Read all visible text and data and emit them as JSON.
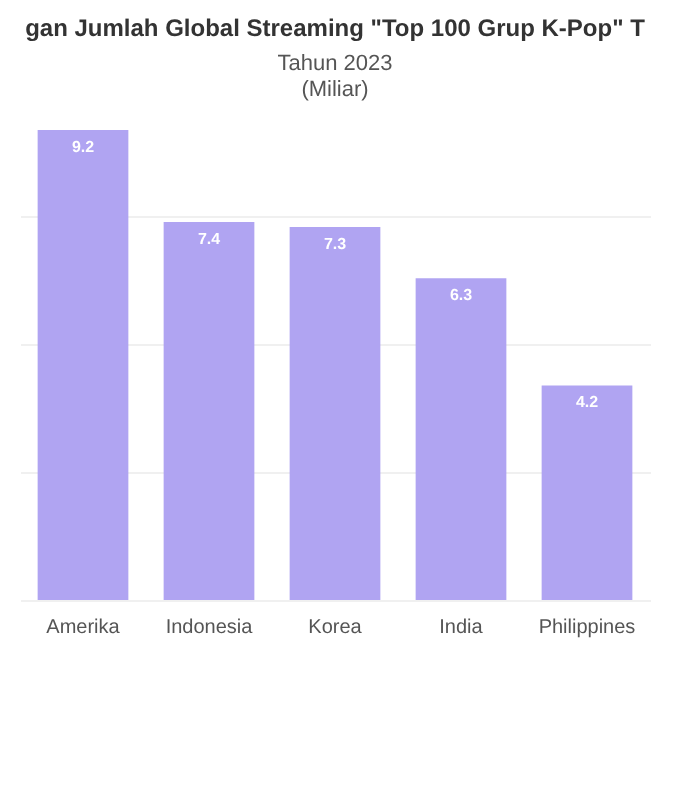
{
  "chart_data": {
    "type": "bar",
    "title": "gan Jumlah Global Streaming \"Top 100 Grup K-Pop\" T",
    "subtitle": "Tahun 2023",
    "annotations": [
      "(Miliar)"
    ],
    "categories": [
      "Amerika",
      "Indonesia",
      "Korea",
      "India",
      "Philippines"
    ],
    "values": [
      9.2,
      7.4,
      7.3,
      6.3,
      4.2
    ],
    "color": "#b0a4f2",
    "data_labels": true,
    "yticks": [
      {
        "value": 0,
        "label": null
      },
      {
        "value": 2.5,
        "label": null
      },
      {
        "value": 5,
        "label": null
      },
      {
        "value": 7.5,
        "label": null
      }
    ],
    "grid": "y",
    "tick_labels": "x"
  }
}
